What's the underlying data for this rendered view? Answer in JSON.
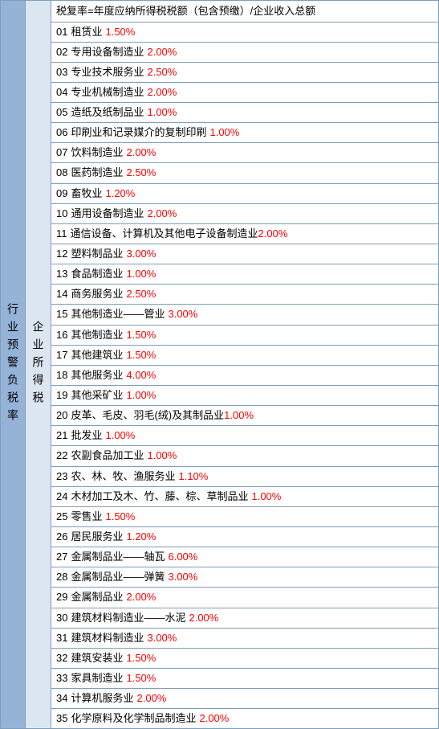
{
  "left_label": "行业预警负税率",
  "mid_label": "企业所得税",
  "header": "税复率=年度应纳所得税税额（包含预缴）/企业收入总额",
  "rows": [
    {
      "num": "01",
      "name": "租赁业",
      "pct": "1.50%",
      "spaced": true
    },
    {
      "num": "02",
      "name": "专用设备制造业",
      "pct": "2.00%",
      "spaced": true
    },
    {
      "num": "03",
      "name": "专业技术服务业",
      "pct": "2.50%",
      "spaced": true
    },
    {
      "num": "04",
      "name": "专业机械制造业",
      "pct": "2.00%",
      "spaced": true
    },
    {
      "num": "05",
      "name": "造纸及纸制品业",
      "pct": "1.00%",
      "spaced": true
    },
    {
      "num": "06",
      "name": "印刷业和记录媒介的复制印刷",
      "pct": "1.00%",
      "spaced": true
    },
    {
      "num": "07",
      "name": "饮料制造业",
      "pct": "2.00%",
      "spaced": true
    },
    {
      "num": "08",
      "name": "医药制造业",
      "pct": "2.50%",
      "spaced": true
    },
    {
      "num": "09",
      "name": "畜牧业",
      "pct": "1.20%",
      "spaced": true
    },
    {
      "num": "10",
      "name": "通用设备制造业",
      "pct": "2.00%",
      "spaced": true
    },
    {
      "num": "11",
      "name": "通信设备、计算机及其他电子设备制造业",
      "pct": "2.00%",
      "spaced": false
    },
    {
      "num": "12",
      "name": "塑料制品业",
      "pct": "3.00%",
      "spaced": true
    },
    {
      "num": "13",
      "name": "食品制造业",
      "pct": "1.00%",
      "spaced": true
    },
    {
      "num": "14",
      "name": "商务服务业",
      "pct": "2.50%",
      "spaced": true
    },
    {
      "num": "15",
      "name": "其他制造业——管业",
      "pct": "3.00%",
      "spaced": true
    },
    {
      "num": "16",
      "name": "其他制造业",
      "pct": "1.50%",
      "spaced": true
    },
    {
      "num": "17",
      "name": "其他建筑业",
      "pct": "1.50%",
      "spaced": true
    },
    {
      "num": "18",
      "name": "其他服务业",
      "pct": "4.00%",
      "spaced": true
    },
    {
      "num": "19",
      "name": "其他采矿业",
      "pct": "1.00%",
      "spaced": true
    },
    {
      "num": "20",
      "name": "皮革、毛皮、羽毛(绒)及其制品业",
      "pct": "1.00%",
      "spaced": false
    },
    {
      "num": "21",
      "name": "批发业",
      "pct": "1.00%",
      "spaced": true
    },
    {
      "num": "22",
      "name": "农副食品加工业",
      "pct": "1.00%",
      "spaced": true
    },
    {
      "num": "23",
      "name": "农、林、牧、渔服务业",
      "pct": "1.10%",
      "spaced": true
    },
    {
      "num": "24",
      "name": "木材加工及木、竹、藤、棕、草制品业",
      "pct": "1.00%",
      "spaced": true
    },
    {
      "num": "25",
      "name": "零售业",
      "pct": "1.50%",
      "spaced": true
    },
    {
      "num": "26",
      "name": "居民服务业",
      "pct": "1.20%",
      "spaced": true
    },
    {
      "num": "27",
      "name": "金属制品业——轴瓦",
      "pct": "6.00%",
      "spaced": true
    },
    {
      "num": "28",
      "name": "金属制品业——弹簧",
      "pct": "3.00%",
      "spaced": true
    },
    {
      "num": "29",
      "name": "金属制品业",
      "pct": "2.00%",
      "spaced": true
    },
    {
      "num": "30",
      "name": "建筑材料制造业——水泥",
      "pct": "2.00%",
      "spaced": true
    },
    {
      "num": "31",
      "name": "建筑材料制造业",
      "pct": "3.00%",
      "spaced": true
    },
    {
      "num": "32",
      "name": "建筑安装业",
      "pct": "1.50%",
      "spaced": true
    },
    {
      "num": "33",
      "name": "家具制造业",
      "pct": "1.50%",
      "spaced": true
    },
    {
      "num": "34",
      "name": "计算机服务业",
      "pct": "2.00%",
      "spaced": true
    },
    {
      "num": "35",
      "name": "化学原料及化学制品制造业",
      "pct": "2.00%",
      "spaced": true
    }
  ],
  "colors": {
    "left_bg": "#95b3d7",
    "mid_bg": "#dce6f1",
    "border": "#7f9db9",
    "text": "#000000",
    "percent": "#ff0000",
    "row_bg": "#ffffff"
  }
}
